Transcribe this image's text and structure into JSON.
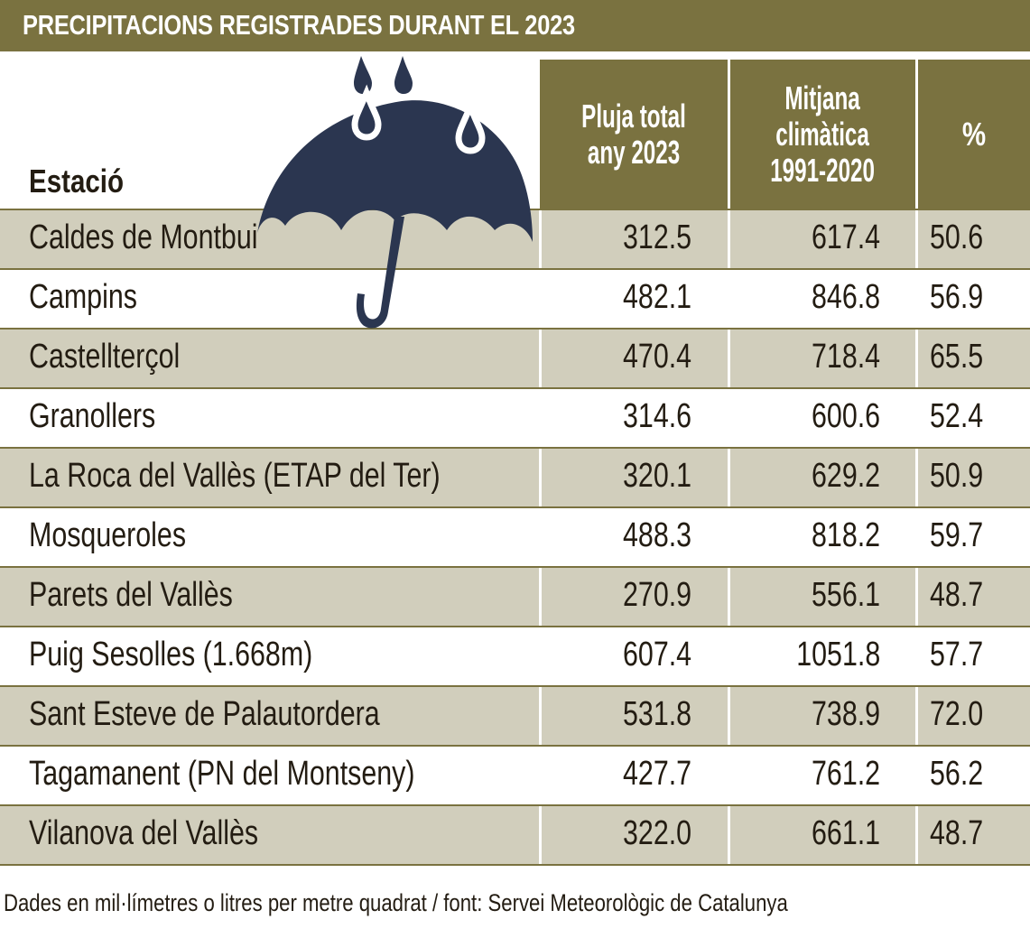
{
  "title": "PRECIPITACIONS REGISTRADES DURANT EL 2023",
  "colors": {
    "accent": "#7a7240",
    "row_shade": "#d1cebc",
    "umbrella": "#2b3650"
  },
  "icon": "umbrella-rain-icon",
  "chart_data": {
    "type": "table",
    "title": "PRECIPITACIONS REGISTRADES DURANT EL 2023",
    "columns": [
      "Estació",
      "Pluja total any 2023",
      "Mitjana climàtica 1991-2020",
      "%"
    ],
    "rows": [
      [
        "Caldes de Montbui",
        "312.5",
        "617.4",
        "50.6"
      ],
      [
        "Campins",
        "482.1",
        "846.8",
        "56.9"
      ],
      [
        "Castellterçol",
        "470.4",
        "718.4",
        "65.5"
      ],
      [
        "Granollers",
        "314.6",
        "600.6",
        "52.4"
      ],
      [
        "La Roca del Vallès (ETAP del Ter)",
        "320.1",
        "629.2",
        "50.9"
      ],
      [
        "Mosqueroles",
        "488.3",
        "818.2",
        "59.7"
      ],
      [
        "Parets del Vallès",
        "270.9",
        "556.1",
        "48.7"
      ],
      [
        "Puig Sesolles (1.668m)",
        "607.4",
        "1051.8",
        "57.7"
      ],
      [
        "Sant Esteve de Palautordera",
        "531.8",
        "738.9",
        "72.0"
      ],
      [
        "Tagamanent  (PN del Montseny)",
        "427.7",
        "761.2",
        "56.2"
      ],
      [
        "Vilanova del Vallès",
        "322.0",
        "661.1",
        "48.7"
      ]
    ]
  },
  "header": {
    "station": "Estació",
    "total_line1": "Pluja total",
    "total_line2": "any 2023",
    "avg_line1": "Mitjana",
    "avg_line2": "climàtica",
    "avg_line3": "1991-2020",
    "pct": "%"
  },
  "footer": "Dades en mil·límetres o litres per metre quadrat / font: Servei Meteorològic de Catalunya"
}
